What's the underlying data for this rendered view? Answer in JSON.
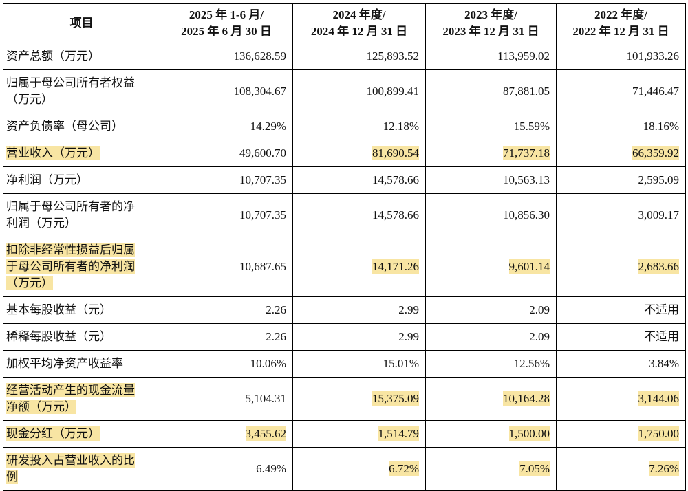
{
  "table": {
    "highlight_color": "#F8E5A3",
    "columns": [
      {
        "label": "项目"
      },
      {
        "label": "2025 年 1-6 月/\n2025 年 6 月 30 日"
      },
      {
        "label": "2024 年度/\n2024 年 12 月 31 日"
      },
      {
        "label": "2023 年度/\n2023 年 12 月 31 日"
      },
      {
        "label": "2022 年度/\n2022 年 12 月 31 日"
      }
    ],
    "rows": [
      {
        "label": "资产总额（万元）",
        "label_hl": false,
        "values": [
          "136,628.59",
          "125,893.52",
          "113,959.02",
          "101,933.26"
        ],
        "value_hl": [
          false,
          false,
          false,
          false
        ]
      },
      {
        "label": "归属于母公司所有者权益\n（万元）",
        "label_hl": false,
        "values": [
          "108,304.67",
          "100,899.41",
          "87,881.05",
          "71,446.47"
        ],
        "value_hl": [
          false,
          false,
          false,
          false
        ]
      },
      {
        "label": "资产负债率（母公司）",
        "label_hl": false,
        "values": [
          "14.29%",
          "12.18%",
          "15.59%",
          "18.16%"
        ],
        "value_hl": [
          false,
          false,
          false,
          false
        ]
      },
      {
        "label": "营业收入（万元）",
        "label_hl": true,
        "values": [
          "49,600.70",
          "81,690.54",
          "71,737.18",
          "66,359.92"
        ],
        "value_hl": [
          false,
          true,
          true,
          true
        ]
      },
      {
        "label": "净利润（万元）",
        "label_hl": false,
        "values": [
          "10,707.35",
          "14,578.66",
          "10,563.13",
          "2,595.09"
        ],
        "value_hl": [
          false,
          false,
          false,
          false
        ]
      },
      {
        "label": "归属于母公司所有者的净\n利润（万元）",
        "label_hl": false,
        "values": [
          "10,707.35",
          "14,578.66",
          "10,856.30",
          "3,009.17"
        ],
        "value_hl": [
          false,
          false,
          false,
          false
        ]
      },
      {
        "label": "扣除非经常性损益后归属\n于母公司所有者的净利润\n（万元）",
        "label_hl": true,
        "values": [
          "10,687.65",
          "14,171.26",
          "9,601.14",
          "2,683.66"
        ],
        "value_hl": [
          false,
          true,
          true,
          true
        ]
      },
      {
        "label": "基本每股收益（元）",
        "label_hl": false,
        "values": [
          "2.26",
          "2.99",
          "2.09",
          "不适用"
        ],
        "value_hl": [
          false,
          false,
          false,
          false
        ]
      },
      {
        "label": "稀释每股收益（元）",
        "label_hl": false,
        "values": [
          "2.26",
          "2.99",
          "2.09",
          "不适用"
        ],
        "value_hl": [
          false,
          false,
          false,
          false
        ]
      },
      {
        "label": "加权平均净资产收益率",
        "label_hl": false,
        "values": [
          "10.06%",
          "15.01%",
          "12.56%",
          "3.84%"
        ],
        "value_hl": [
          false,
          false,
          false,
          false
        ]
      },
      {
        "label": "经营活动产生的现金流量\n净额（万元）",
        "label_hl": true,
        "values": [
          "5,104.31",
          "15,375.09",
          "10,164.28",
          "3,144.06"
        ],
        "value_hl": [
          false,
          true,
          true,
          true
        ]
      },
      {
        "label": "现金分红（万元）",
        "label_hl": true,
        "values": [
          "3,455.62",
          "1,514.79",
          "1,500.00",
          "1,750.00"
        ],
        "value_hl": [
          true,
          true,
          true,
          true
        ]
      },
      {
        "label": "研发投入占营业收入的比\n例",
        "label_hl": true,
        "values": [
          "6.49%",
          "6.72%",
          "7.05%",
          "7.26%"
        ],
        "value_hl": [
          false,
          true,
          true,
          true
        ]
      }
    ]
  }
}
